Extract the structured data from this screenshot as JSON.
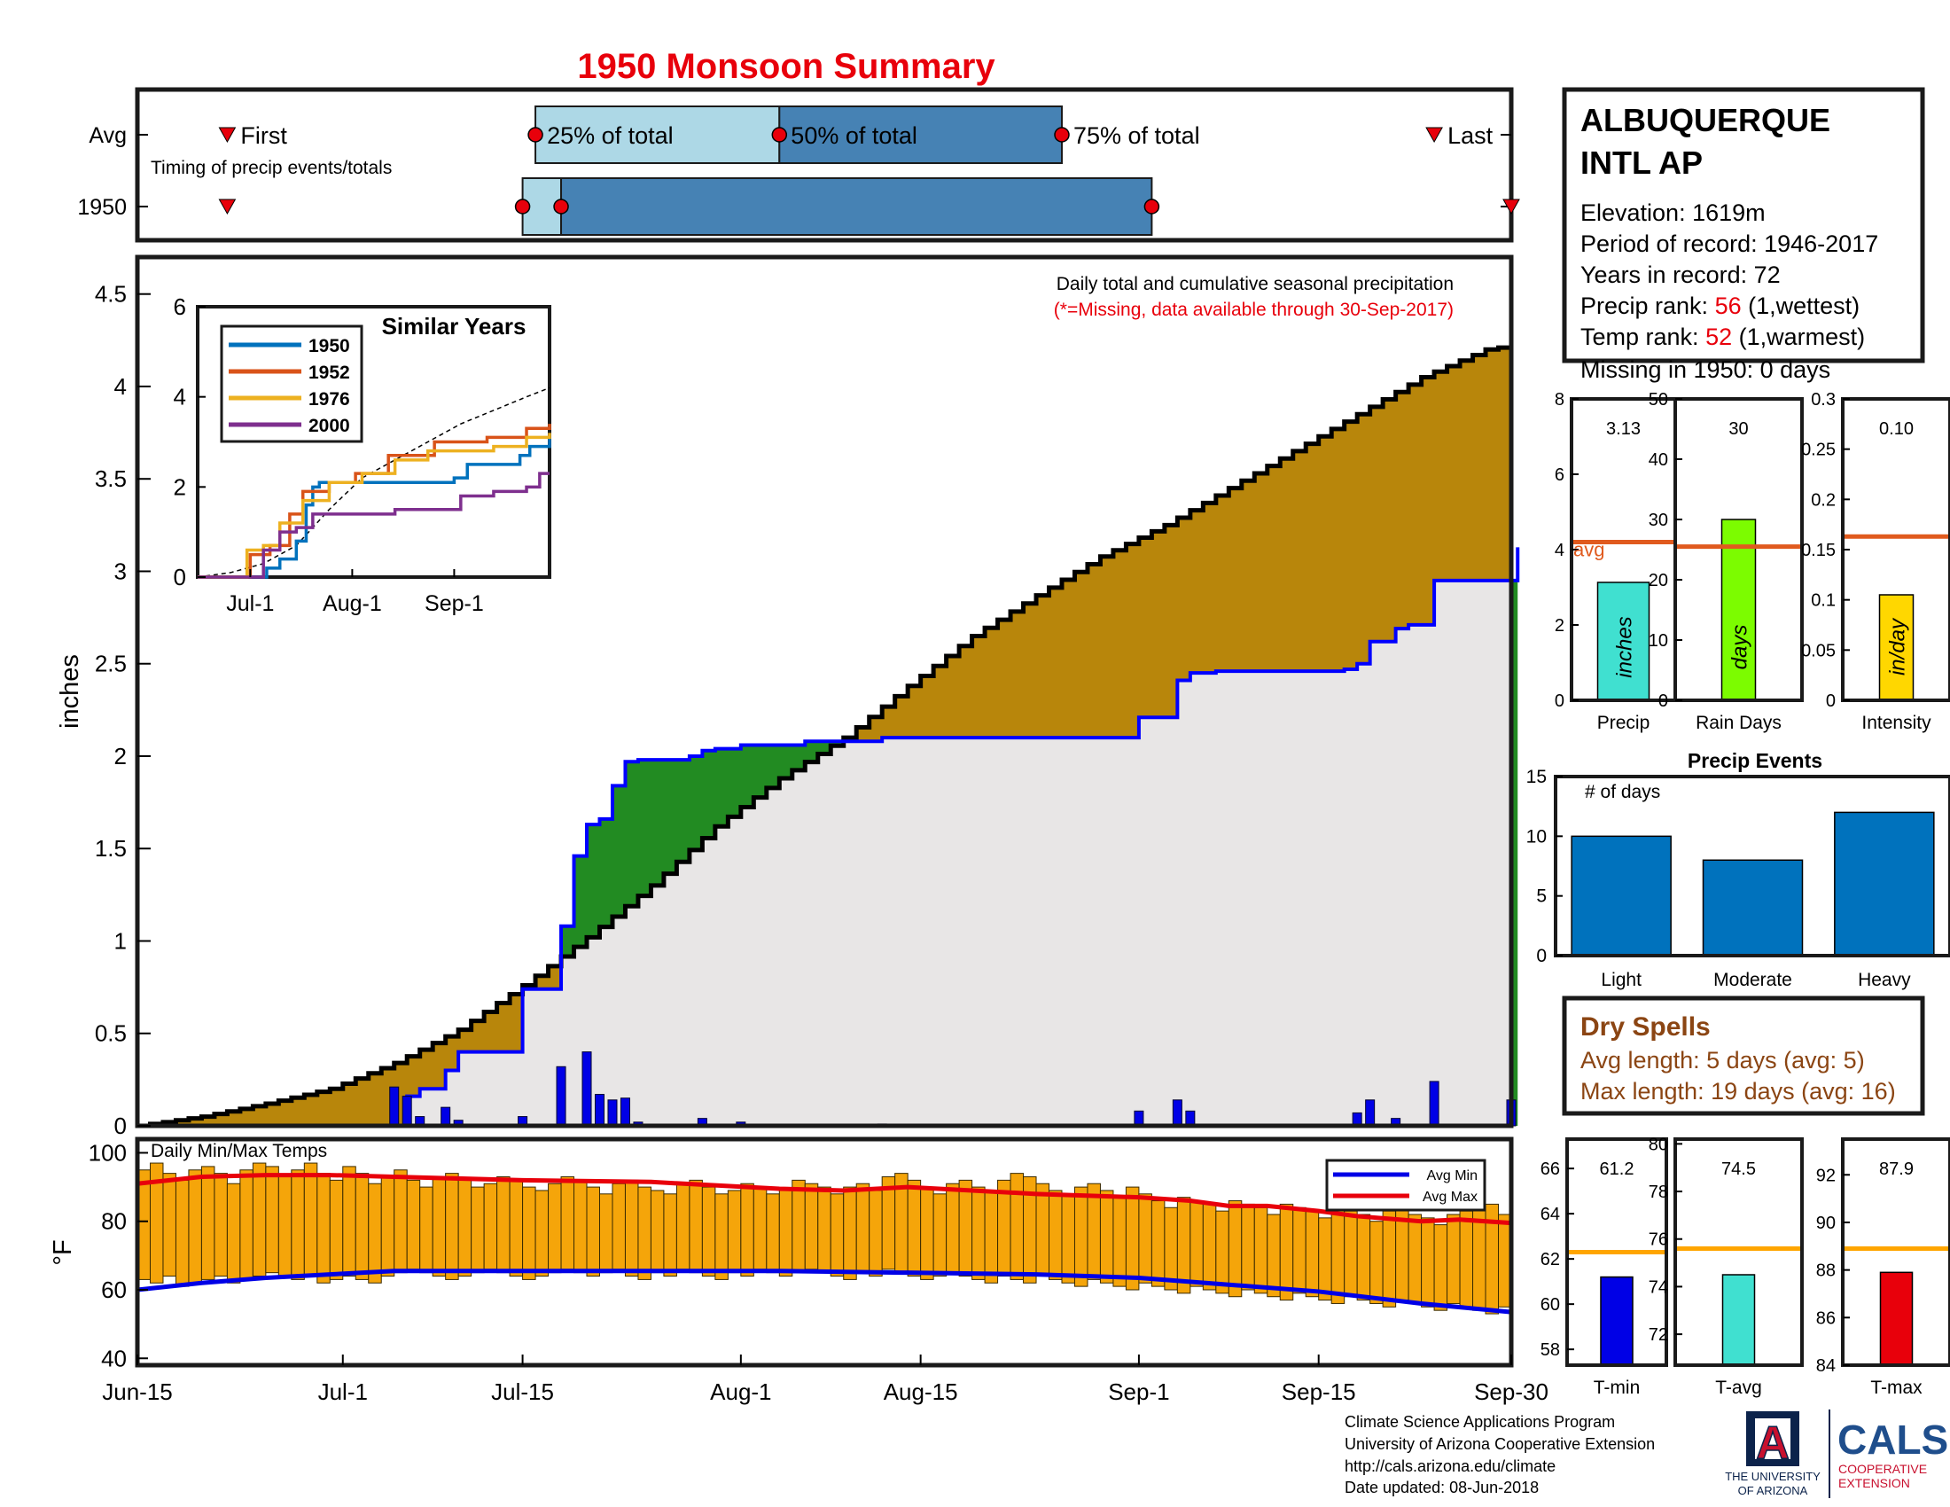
{
  "title": "1950 Monsoon Summary",
  "colors": {
    "title": "#e8000b",
    "cum_fill": "#b8860b",
    "avg_fill": "#e8e6e6",
    "green_fill": "#228b22",
    "daily_bar": "#0000e6",
    "q_light": "#add8e6",
    "q_dark": "#4682b4",
    "marker": "#e8000b",
    "orange_bar": "#f5a50a",
    "avg_line_orange": "#e05a1e",
    "avg_line_yellow": "#ffa500",
    "brown_text": "#8b4513",
    "red_text": "#e8000b",
    "navy": "#0c234b",
    "cals_blue": "#1f4e8c"
  },
  "timing": {
    "caption": "Timing of precip events/totals",
    "row_labels": [
      "Avg",
      "1950"
    ],
    "labels": {
      "first": "First",
      "q25": "25% of total",
      "q50": "50% of total",
      "q75": "75% of total",
      "last": "Last"
    },
    "avg": {
      "first": "Jun-22",
      "q25": "Jul-16",
      "q50": "Aug-4",
      "q75": "Aug-26",
      "last": "Sep-24"
    },
    "y1950": {
      "first": "Jun-22",
      "q25": "Jul-15",
      "q50": "Jul-18",
      "q75": "Sep-2",
      "last": "Sep-30"
    }
  },
  "station": {
    "name_line1": "ALBUQUERQUE",
    "name_line2": "INTL AP",
    "elevation": "Elevation: 1619m",
    "period": "Period of record: 1946-2017",
    "years": "Years in record: 72",
    "precip_rank_label": "Precip rank: ",
    "precip_rank_value": "56",
    "precip_rank_note": " (1,wettest)",
    "temp_rank_label": "Temp rank: ",
    "temp_rank_value": "52",
    "temp_rank_note": " (1,warmest)",
    "missing": "Missing in 1950: 0 days"
  },
  "chart_data": [
    {
      "type": "area",
      "title": "Daily total and cumulative seasonal precipitation",
      "subtitle": "(*=Missing, data available through 30-Sep-2017)",
      "ylabel": "inches",
      "ylim": [
        0,
        4.7
      ],
      "yticks": [
        0,
        0.5,
        1,
        1.5,
        2,
        2.5,
        3,
        3.5,
        4,
        4.5
      ],
      "xticks": [
        "Jun-15",
        "Jul-1",
        "Jul-15",
        "Aug-1",
        "Aug-15",
        "Sep-1",
        "Sep-15",
        "Sep-30"
      ],
      "xtick_days": [
        0,
        16,
        30,
        47,
        61,
        78,
        92,
        107
      ],
      "avg_cumulative": {
        "name": "Average cumulative",
        "x": [
          0,
          5,
          10,
          15,
          20,
          25,
          30,
          35,
          40,
          45,
          50,
          55,
          60,
          65,
          70,
          75,
          80,
          85,
          90,
          95,
          100,
          105,
          107
        ],
        "y": [
          0.0,
          0.05,
          0.12,
          0.2,
          0.34,
          0.52,
          0.76,
          1.02,
          1.3,
          1.62,
          1.88,
          2.1,
          2.38,
          2.65,
          2.87,
          3.08,
          3.25,
          3.45,
          3.65,
          3.85,
          4.05,
          4.2,
          4.22
        ]
      },
      "year_cumulative": {
        "name": "1950 cumulative",
        "x": [
          0,
          20,
          21,
          22,
          24,
          25,
          30,
          33,
          34,
          35,
          36,
          37,
          38,
          39,
          43,
          44,
          45,
          47,
          52,
          58,
          77,
          78,
          81,
          82,
          84,
          94,
          95,
          96,
          98,
          99,
          101,
          107,
          107.5
        ],
        "y": [
          0.0,
          0.0,
          0.16,
          0.2,
          0.3,
          0.4,
          0.74,
          1.08,
          1.46,
          1.63,
          1.66,
          1.84,
          1.97,
          1.98,
          2.0,
          2.03,
          2.04,
          2.06,
          2.08,
          2.1,
          2.1,
          2.21,
          2.41,
          2.45,
          2.46,
          2.47,
          2.5,
          2.62,
          2.69,
          2.71,
          2.95,
          2.95,
          3.13
        ]
      },
      "daily": {
        "name": "Daily precip",
        "x": [
          20,
          21,
          22,
          24,
          25,
          30,
          33,
          35,
          36,
          37,
          38,
          39,
          44,
          47,
          58,
          78,
          81,
          82,
          95,
          96,
          98,
          101,
          107
        ],
        "values": [
          0.21,
          0.16,
          0.05,
          0.1,
          0.03,
          0.05,
          0.32,
          0.4,
          0.17,
          0.14,
          0.15,
          0.02,
          0.04,
          0.02,
          0.01,
          0.08,
          0.14,
          0.08,
          0.07,
          0.14,
          0.04,
          0.24,
          0.14
        ]
      }
    },
    {
      "type": "line",
      "title": "Similar Years",
      "ylim": [
        0,
        6
      ],
      "yticks": [
        0,
        2,
        4,
        6
      ],
      "xticks": [
        "Jul-1",
        "Aug-1",
        "Sep-1"
      ],
      "xtick_days": [
        16,
        47,
        78
      ],
      "series": [
        {
          "name": "1950",
          "color": "#0072bd",
          "x": [
            0,
            20,
            21,
            25,
            30,
            33,
            35,
            37,
            39,
            58,
            78,
            82,
            95,
            98,
            101,
            107
          ],
          "y": [
            0,
            0,
            0.2,
            0.4,
            0.8,
            1.6,
            2.0,
            2.1,
            2.1,
            2.1,
            2.2,
            2.5,
            2.5,
            2.7,
            2.9,
            3.1
          ]
        },
        {
          "name": "1952",
          "color": "#d95319",
          "x": [
            0,
            14,
            16,
            22,
            28,
            32,
            40,
            48,
            58,
            72,
            88,
            100,
            107
          ],
          "y": [
            0,
            0,
            0.5,
            0.7,
            1.4,
            1.9,
            2.1,
            2.3,
            2.7,
            3.0,
            3.1,
            3.3,
            3.4
          ]
        },
        {
          "name": "1976",
          "color": "#edb120",
          "x": [
            0,
            12,
            15,
            20,
            25,
            32,
            40,
            50,
            60,
            70,
            80,
            90,
            100,
            107
          ],
          "y": [
            0,
            0,
            0.6,
            0.7,
            1.2,
            1.7,
            2.1,
            2.3,
            2.6,
            2.8,
            2.8,
            2.9,
            3.1,
            3.2
          ]
        },
        {
          "name": "2000",
          "color": "#7e2f8e",
          "x": [
            0,
            16,
            20,
            25,
            30,
            35,
            45,
            60,
            70,
            80,
            90,
            100,
            104,
            107
          ],
          "y": [
            0,
            0,
            0.6,
            1.0,
            1.1,
            1.4,
            1.4,
            1.5,
            1.5,
            1.8,
            1.9,
            2.0,
            2.3,
            2.3
          ]
        }
      ],
      "avg_dashed": {
        "x": [
          0,
          10,
          20,
          30,
          40,
          50,
          60,
          70,
          80,
          90,
          100,
          107
        ],
        "y": [
          0,
          0.1,
          0.3,
          0.7,
          1.5,
          2.2,
          2.6,
          3.0,
          3.4,
          3.7,
          4.0,
          4.2
        ]
      }
    },
    {
      "type": "bar",
      "xlabel": "Precip",
      "value_label": "3.13",
      "unit": "inches",
      "value": 3.13,
      "avg": 4.2,
      "avg_label": "avg",
      "ylim": [
        0,
        8
      ],
      "yticks": [
        0,
        2,
        4,
        6,
        8
      ],
      "color": "#40e0d0"
    },
    {
      "type": "bar",
      "xlabel": "Rain Days",
      "value_label": "30",
      "unit": "days",
      "value": 30,
      "avg": 25.5,
      "ylim": [
        0,
        50
      ],
      "yticks": [
        0,
        10,
        20,
        30,
        40,
        50
      ],
      "color": "#7cfc00"
    },
    {
      "type": "bar",
      "xlabel": "Intensity",
      "value_label": "0.10",
      "unit": "in/day",
      "value": 0.105,
      "avg": 0.163,
      "ylim": [
        0,
        0.3
      ],
      "yticks": [
        0,
        0.05,
        0.1,
        0.15,
        0.2,
        0.25,
        0.3
      ],
      "tick_labels": [
        "0",
        "0.05",
        "0.1",
        "0.15",
        "0.2",
        "0.25",
        "0.3"
      ],
      "color": "#ffd700"
    },
    {
      "type": "bar",
      "title": "Precip Events",
      "ylabel_inside": "# of days",
      "categories": [
        "Light",
        "Moderate",
        "Heavy"
      ],
      "values": [
        10,
        8,
        12
      ],
      "ylim": [
        0,
        15
      ],
      "yticks": [
        0,
        5,
        10,
        15
      ],
      "color": "#0072bd"
    },
    {
      "type": "bar",
      "title": "Daily Min/Max Temps",
      "ylabel": "°F",
      "ylim": [
        38,
        104
      ],
      "yticks": [
        40,
        60,
        80,
        100
      ],
      "legend": [
        "Avg Min",
        "Avg Max"
      ],
      "legend_colors": [
        "#0000e6",
        "#e8000b"
      ],
      "avg_min": {
        "x": [
          0,
          5,
          10,
          15,
          20,
          30,
          40,
          50,
          60,
          70,
          78,
          85,
          92,
          100,
          107
        ],
        "y": [
          60,
          62,
          63.5,
          64.5,
          65.5,
          65.5,
          65.5,
          65.5,
          65,
          64.5,
          63.5,
          61.5,
          59.5,
          56,
          53.5
        ]
      },
      "avg_max": {
        "x": [
          0,
          5,
          10,
          15,
          20,
          30,
          40,
          45,
          50,
          55,
          60,
          70,
          78,
          82,
          85,
          88,
          92,
          95,
          100,
          103,
          107
        ],
        "y": [
          91,
          93,
          93.5,
          93.5,
          93,
          92,
          91.5,
          90.5,
          89.5,
          89,
          90,
          88,
          87,
          86,
          84.5,
          84.5,
          83,
          81.5,
          80,
          80.5,
          79.5
        ]
      },
      "min_temps": [
        63,
        62,
        64,
        61,
        62,
        63,
        64,
        62,
        63,
        64,
        65,
        64,
        63,
        64,
        62,
        63,
        64,
        63,
        62,
        64,
        65,
        66,
        65,
        64,
        63,
        64,
        65,
        66,
        65,
        64,
        63,
        64,
        65,
        66,
        65,
        64,
        65,
        66,
        64,
        63,
        65,
        64,
        66,
        65,
        64,
        63,
        65,
        64,
        66,
        65,
        64,
        65,
        66,
        65,
        64,
        63,
        65,
        64,
        66,
        65,
        64,
        63,
        64,
        65,
        64,
        63,
        62,
        64,
        63,
        62,
        64,
        63,
        62,
        61,
        63,
        62,
        61,
        60,
        62,
        61,
        60,
        59,
        61,
        60,
        59,
        58,
        60,
        59,
        58,
        57,
        59,
        58,
        57,
        56,
        58,
        57,
        56,
        55,
        57,
        56,
        55,
        54,
        56,
        55,
        54,
        53,
        55
      ],
      "max_temps": [
        95,
        97,
        94,
        92,
        95,
        96,
        94,
        91,
        95,
        97,
        96,
        93,
        95,
        97,
        94,
        92,
        96,
        94,
        91,
        93,
        95,
        92,
        90,
        93,
        94,
        92,
        90,
        91,
        93,
        92,
        90,
        89,
        91,
        93,
        92,
        90,
        88,
        91,
        92,
        90,
        89,
        88,
        91,
        92,
        90,
        88,
        89,
        91,
        90,
        88,
        89,
        92,
        91,
        90,
        88,
        90,
        91,
        89,
        93,
        94,
        92,
        90,
        88,
        91,
        92,
        90,
        89,
        92,
        94,
        93,
        91,
        89,
        88,
        90,
        91,
        89,
        87,
        90,
        88,
        86,
        84,
        87,
        86,
        85,
        83,
        86,
        85,
        84,
        82,
        85,
        84,
        83,
        81,
        84,
        83,
        82,
        80,
        83,
        84,
        82,
        81,
        79,
        82,
        83,
        84,
        85,
        82
      ]
    },
    {
      "type": "bar",
      "xlabel": "T-min",
      "value_label": "61.2",
      "value": 61.2,
      "avg": 62.3,
      "ylim": [
        57.3,
        67.3
      ],
      "yticks": [
        58,
        60,
        62,
        64,
        66
      ],
      "color": "#0000e6"
    },
    {
      "type": "bar",
      "xlabel": "T-avg",
      "value_label": "74.5",
      "value": 74.5,
      "avg": 75.6,
      "ylim": [
        70.7,
        80.2
      ],
      "yticks": [
        72,
        74,
        76,
        78,
        80
      ],
      "color": "#40e0d0"
    },
    {
      "type": "bar",
      "xlabel": "T-max",
      "value_label": "87.9",
      "value": 87.9,
      "avg": 88.9,
      "ylim": [
        84,
        93.5
      ],
      "yticks": [
        84,
        86,
        88,
        90,
        92
      ],
      "color": "#e8000b"
    }
  ],
  "dry_spells": {
    "title": "Dry Spells",
    "avg_line": "Avg length: 5 days (avg: 5)",
    "max_line": "Max length: 19 days (avg: 16)"
  },
  "footer": {
    "line1": "Climate Science Applications Program",
    "line2": "University of Arizona Cooperative Extension",
    "line3": "http://cals.arizona.edu/climate",
    "line4": " Date updated: 08-Jun-2018"
  },
  "logos": {
    "ua_letter": "A",
    "ua_line1": "THE UNIVERSITY",
    "ua_line2": "OF ARIZONA",
    "cals": "CALS",
    "cals_line1": "COOPERATIVE",
    "cals_line2": "EXTENSION"
  }
}
